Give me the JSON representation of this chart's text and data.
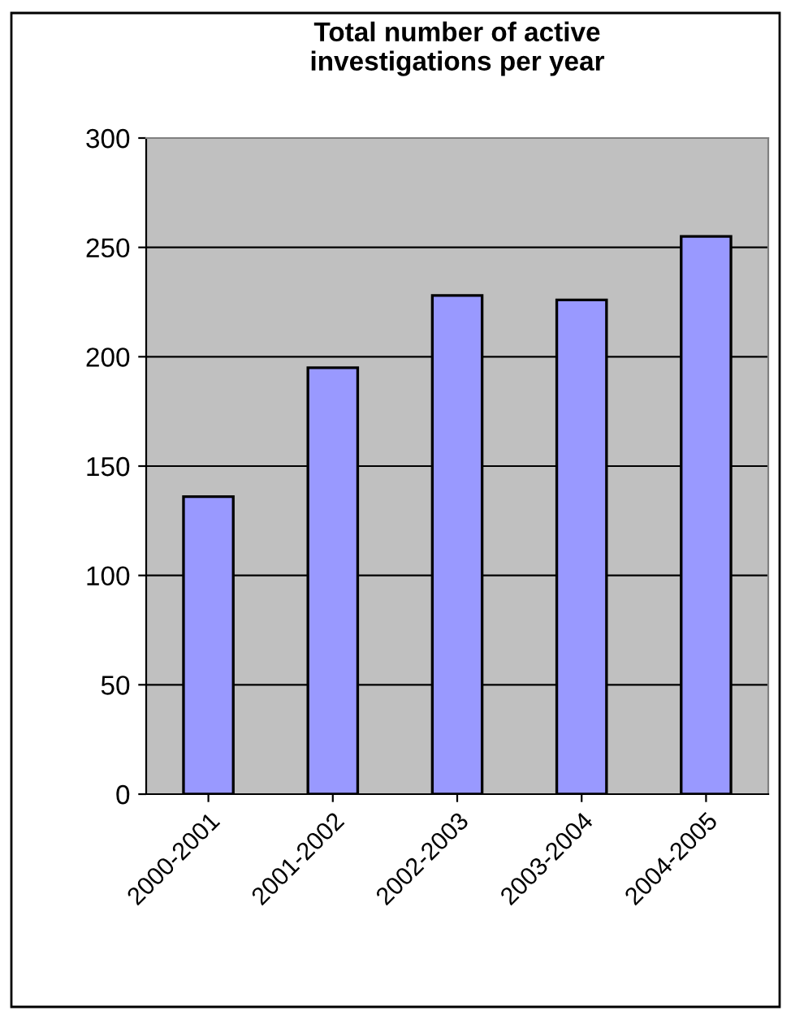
{
  "chart_data": {
    "type": "bar",
    "title": "Total number of active\ninvestigations per year",
    "categories": [
      "2000-2001",
      "2001-2002",
      "2002-2003",
      "2003-2004",
      "2004-2005"
    ],
    "values": [
      136,
      195,
      228,
      226,
      255
    ],
    "color": "#9999ff",
    "ylim": [
      0,
      300
    ],
    "yticks": [
      0,
      50,
      100,
      150,
      200,
      250,
      300
    ],
    "grid": "y"
  }
}
